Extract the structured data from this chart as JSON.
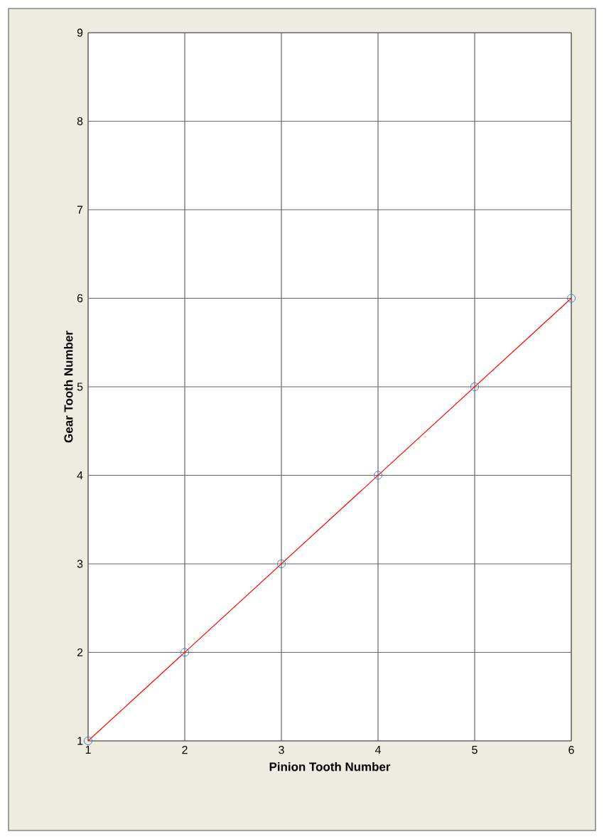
{
  "chart_data": {
    "type": "line",
    "xlabel": "Pinion Tooth Number",
    "ylabel": "Gear Tooth Number",
    "x": [
      1,
      2,
      3,
      4,
      5,
      6
    ],
    "series": [
      {
        "color": "#ff0000",
        "values": [
          1,
          2,
          3,
          4,
          5,
          6
        ]
      },
      {
        "type": "scatter",
        "color": "#4f81bd",
        "marker": "circle",
        "values": [
          1,
          2,
          3,
          4,
          5,
          6
        ]
      }
    ],
    "xlim": [
      1,
      6
    ],
    "xticks": [
      1,
      2,
      3,
      4,
      5,
      6
    ],
    "ylim": [
      1,
      9
    ],
    "yticks": [
      1,
      2,
      3,
      4,
      5,
      6,
      7,
      8,
      9
    ],
    "grid": true
  }
}
